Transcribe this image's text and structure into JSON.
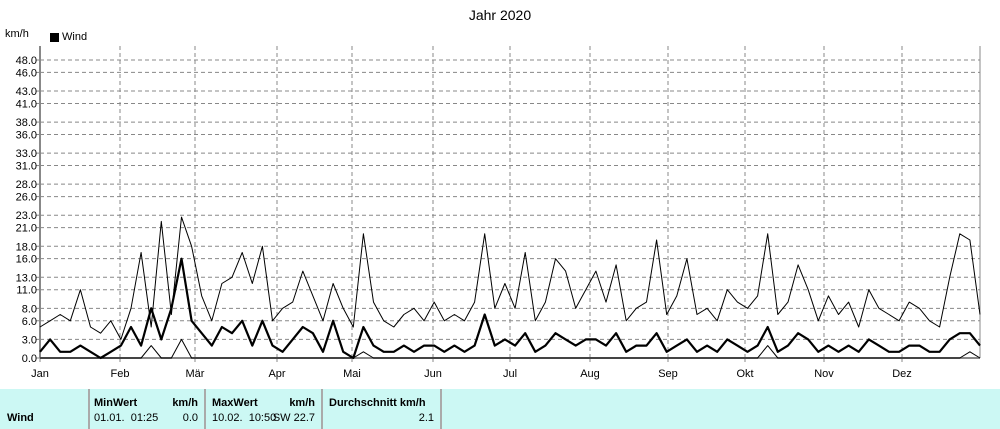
{
  "chart_data": {
    "type": "line",
    "title": "Jahr 2020",
    "ylabel": "km/h",
    "legend": [
      "Wind"
    ],
    "legend_placement": "top-left",
    "grid": true,
    "ylim": [
      0,
      50
    ],
    "yticks": [
      "0.0",
      "3.0",
      "6.0",
      "8.0",
      "11.0",
      "13.0",
      "16.0",
      "18.0",
      "21.0",
      "23.0",
      "26.0",
      "28.0",
      "31.0",
      "33.0",
      "36.0",
      "38.0",
      "41.0",
      "43.0",
      "46.0",
      "48.0"
    ],
    "xticks": [
      "Jan",
      "Feb",
      "Mär",
      "Apr",
      "Mai",
      "Jun",
      "Jul",
      "Aug",
      "Sep",
      "Okt",
      "Nov",
      "Dez"
    ],
    "series": [
      {
        "values": [
          5,
          6,
          7,
          6,
          11,
          5,
          4,
          6,
          3,
          8,
          17,
          5,
          22,
          7,
          22.7,
          18,
          10,
          6,
          12,
          13,
          17,
          12,
          18,
          6,
          8,
          9,
          14,
          10,
          6,
          12,
          8,
          5,
          20,
          9,
          6,
          5,
          7,
          8,
          6,
          9,
          6,
          7,
          6,
          9,
          20,
          8,
          12,
          8,
          17,
          6,
          9,
          16,
          14,
          8,
          11,
          14,
          9,
          15,
          6,
          8,
          9,
          19,
          7,
          10,
          16,
          7,
          8,
          6,
          11,
          9,
          8,
          10,
          20,
          7,
          9,
          15,
          11,
          6,
          10,
          7,
          9,
          5,
          11,
          8,
          7,
          6,
          9,
          8,
          6,
          5,
          13,
          20,
          19,
          7
        ],
        "color": "#000",
        "width": 1
      },
      {
        "values": [
          1,
          3,
          1,
          1,
          2,
          1,
          0,
          1,
          2,
          5,
          2,
          8,
          3,
          8,
          16,
          6,
          4,
          2,
          5,
          4,
          6,
          2,
          6,
          2,
          1,
          3,
          5,
          4,
          1,
          6,
          1,
          0,
          5,
          2,
          1,
          1,
          2,
          1,
          2,
          2,
          1,
          2,
          1,
          2,
          7,
          2,
          3,
          2,
          4,
          1,
          2,
          4,
          3,
          2,
          3,
          3,
          2,
          4,
          1,
          2,
          2,
          4,
          1,
          2,
          3,
          1,
          2,
          1,
          3,
          2,
          1,
          2,
          5,
          1,
          2,
          4,
          3,
          1,
          2,
          1,
          2,
          1,
          3,
          2,
          1,
          1,
          2,
          2,
          1,
          1,
          3,
          4,
          4,
          2
        ],
        "color": "#000",
        "width": 2.2
      },
      {
        "values": [
          0,
          0,
          0,
          0,
          0,
          0,
          0,
          0,
          0,
          0,
          0,
          2,
          0,
          0,
          3,
          0,
          0,
          0,
          0,
          0,
          0,
          0,
          0,
          0,
          0,
          0,
          0,
          0,
          0,
          0,
          0,
          0,
          1,
          0,
          0,
          0,
          0,
          0,
          0,
          0,
          0,
          0,
          0,
          0,
          0,
          0,
          0,
          0,
          0,
          0,
          0,
          0,
          0,
          0,
          0,
          0,
          0,
          0,
          0,
          0,
          0,
          0,
          0,
          0,
          0,
          0,
          0,
          0,
          0,
          0,
          0,
          0,
          2,
          0,
          0,
          0,
          0,
          0,
          0,
          0,
          0,
          0,
          0,
          0,
          0,
          0,
          0,
          0,
          0,
          0,
          0,
          0,
          1,
          0
        ],
        "color": "#000",
        "width": 1
      }
    ]
  },
  "stats": {
    "row_label": "Wind",
    "min_header": "MinWert",
    "min_unit": "km/h",
    "min_date": "01.01.  01:25",
    "min_value": "0.0",
    "max_header": "MaxWert",
    "max_unit": "km/h",
    "max_date": "10.02.  10:50",
    "max_value": "SW 22.7",
    "avg_header": "Durchschnitt km/h",
    "avg_value": "2.1"
  }
}
